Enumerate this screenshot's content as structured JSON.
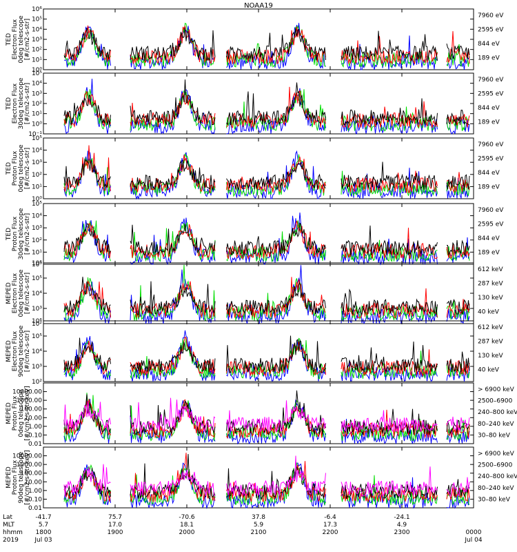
{
  "chart_data": {
    "type": "line",
    "title": "NOAA19",
    "x_range_hours": [
      18.0,
      24.0
    ],
    "x_tick_hours": [
      18,
      19,
      20,
      21,
      22,
      23
    ],
    "panels": [
      {
        "id": "ted-e-0",
        "ylabel": [
          "TED",
          "Electron Flux",
          "0deg telescope",
          "[#/cm2-s-str]"
        ],
        "ymin_exp": 0,
        "ymax_exp": 6,
        "ylabels": [
          "10⁰",
          "10¹",
          "10²",
          "10³",
          "10⁴",
          "10⁵",
          "10⁶"
        ],
        "log_labels": true,
        "legend": [
          {
            "text": "7960 eV",
            "color": "#000000"
          },
          {
            "text": "2595 eV",
            "color": "#ff0000"
          },
          {
            "text": "844 eV",
            "color": "#00dd00"
          },
          {
            "text": "189 eV",
            "color": "#0000ff"
          }
        ]
      },
      {
        "id": "ted-e-30",
        "ylabel": [
          "TED",
          "Electron Flux",
          "30deg telescope",
          "[#/cm2-s-str]"
        ],
        "ymin_exp": -1,
        "ymax_exp": 5,
        "ylabels": [
          "10⁻¹",
          "10⁰",
          "10¹",
          "10²",
          "10³",
          "10⁴",
          "10⁵"
        ],
        "log_labels": true,
        "legend": [
          {
            "text": "7960 eV",
            "color": "#000000"
          },
          {
            "text": "2595 eV",
            "color": "#ff0000"
          },
          {
            "text": "844 eV",
            "color": "#00dd00"
          },
          {
            "text": "189 eV",
            "color": "#0000ff"
          }
        ]
      },
      {
        "id": "ted-p-0",
        "ylabel": [
          "TED",
          "Proton Flux",
          "0deg telescope",
          "[#/cm2-s-str]"
        ],
        "ymin_exp": 0,
        "ymax_exp": 5,
        "ylabels": [
          "10⁰",
          "10¹",
          "10²",
          "10³",
          "10⁴",
          "10⁵"
        ],
        "log_labels": true,
        "legend": [
          {
            "text": "7960 eV",
            "color": "#000000"
          },
          {
            "text": "2595 eV",
            "color": "#ff0000"
          },
          {
            "text": "844 eV",
            "color": "#00dd00"
          },
          {
            "text": "189 eV",
            "color": "#0000ff"
          }
        ]
      },
      {
        "id": "ted-p-30",
        "ylabel": [
          "TED",
          "Proton Flux",
          "30deg telescope",
          "[#/cm2-s-str]"
        ],
        "ymin_exp": 0,
        "ymax_exp": 5,
        "ylabels": [
          "10⁰",
          "10¹",
          "10²",
          "10³",
          "10⁴",
          "10⁵"
        ],
        "log_labels": true,
        "legend": [
          {
            "text": "7960 eV",
            "color": "#000000"
          },
          {
            "text": "2595 eV",
            "color": "#ff0000"
          },
          {
            "text": "844 eV",
            "color": "#00dd00"
          },
          {
            "text": "189 eV",
            "color": "#0000ff"
          }
        ]
      },
      {
        "id": "meped-e-0",
        "ylabel": [
          "MEPED",
          "Electron Flux",
          "0deg telescope",
          "[#/cm2-s-str]"
        ],
        "ymin_exp": 2,
        "ymax_exp": 6,
        "ylabels": [
          "10²",
          "10³",
          "10⁴",
          "10⁵",
          "10⁶"
        ],
        "log_labels": true,
        "legend": [
          {
            "text": "612 keV",
            "color": "#000000"
          },
          {
            "text": "287 keV",
            "color": "#ff0000"
          },
          {
            "text": "130 keV",
            "color": "#00dd00"
          },
          {
            "text": "40 keV",
            "color": "#0000ff"
          }
        ]
      },
      {
        "id": "meped-e-90",
        "ylabel": [
          "MEPED",
          "Electron Flux",
          "90deg telescope",
          "[#/cm2-s-str]"
        ],
        "ymin_exp": 2,
        "ymax_exp": 6,
        "ylabels": [
          "10²",
          "10³",
          "10⁴",
          "10⁵",
          "10⁶"
        ],
        "log_labels": true,
        "legend": [
          {
            "text": "612 keV",
            "color": "#000000"
          },
          {
            "text": "287 keV",
            "color": "#ff0000"
          },
          {
            "text": "130 keV",
            "color": "#00dd00"
          },
          {
            "text": "40 keV",
            "color": "#0000ff"
          }
        ]
      },
      {
        "id": "meped-p-0",
        "ylabel": [
          "MEPED",
          "Proton Flux",
          "0deg telescope",
          "[#/cm2-s-str-keV]"
        ],
        "ymin_exp": -2,
        "ymax_exp": 5,
        "ylabels": [
          "0.01",
          "0.10",
          "1.00",
          "10.00",
          "100.00",
          "1000.00",
          "10000.00"
        ],
        "log_labels": false,
        "legend": [
          {
            "text": "> 6900 keV",
            "color": "#ff00ff"
          },
          {
            "text": "2500–6900",
            "color": "#000000"
          },
          {
            "text": "240–800 keV",
            "color": "#ff0000"
          },
          {
            "text": "80–240 keV",
            "color": "#00dd00"
          },
          {
            "text": "30–80 keV",
            "color": "#0000ff"
          }
        ]
      },
      {
        "id": "meped-p-90",
        "ylabel": [
          "MEPED",
          "Proton Flux",
          "90deg telescope",
          "[#/cm2-s-str-keV]"
        ],
        "ymin_exp": -2,
        "ymax_exp": 5,
        "ylabels": [
          "0.01",
          "0.10",
          "1.00",
          "10.00",
          "100.00",
          "1000.00",
          "10000.00"
        ],
        "log_labels": false,
        "legend": [
          {
            "text": "> 6900 keV",
            "color": "#ff00ff"
          },
          {
            "text": "2500–6900",
            "color": "#000000"
          },
          {
            "text": "240–800 keV",
            "color": "#ff0000"
          },
          {
            "text": "80–240 keV",
            "color": "#00dd00"
          },
          {
            "text": "30–80 keV",
            "color": "#0000ff"
          }
        ]
      }
    ],
    "footer": {
      "row_labels": [
        "Lat",
        "MLT",
        "hhmm",
        "2019"
      ],
      "ticks": [
        {
          "hour": 18.0,
          "lat": "-41.7",
          "mlt": "5.7",
          "hhmm": "1800",
          "date": "Jul 03"
        },
        {
          "hour": 19.0,
          "lat": "75.7",
          "mlt": "17.0",
          "hhmm": "1900",
          "date": ""
        },
        {
          "hour": 20.0,
          "lat": "-70.6",
          "mlt": "18.1",
          "hhmm": "2000",
          "date": ""
        },
        {
          "hour": 21.0,
          "lat": "37.8",
          "mlt": "5.9",
          "hhmm": "2100",
          "date": ""
        },
        {
          "hour": 22.0,
          "lat": "-6.4",
          "mlt": "17.3",
          "hhmm": "2200",
          "date": ""
        },
        {
          "hour": 23.0,
          "lat": "-24.1",
          "mlt": "4.9",
          "hhmm": "2300",
          "date": ""
        },
        {
          "hour": 24.0,
          "lat": "",
          "mlt": "",
          "hhmm": "0000",
          "date": "Jul 04"
        }
      ]
    }
  }
}
